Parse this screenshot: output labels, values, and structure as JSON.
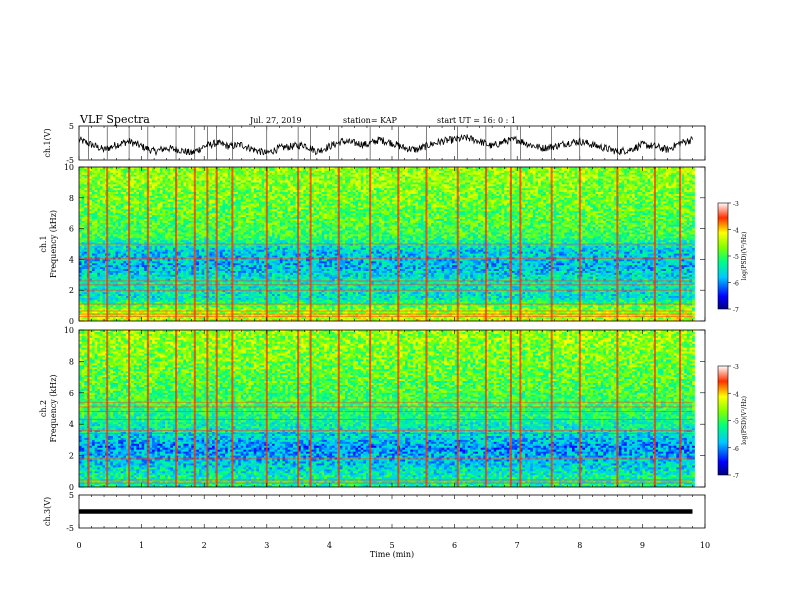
{
  "header": {
    "title": "VLF Spectra",
    "date": "Jul. 27, 2019",
    "station": "station= KAP",
    "start": "start  UT =  16: 0  : 1"
  },
  "chart_data": [
    {
      "type": "line",
      "panel": "ch1-waveform",
      "ylabel": "ch.1(V)",
      "ylim": [
        -5,
        5
      ],
      "ytick_labels": [
        "5",
        "-5"
      ],
      "xlim": [
        0,
        10
      ],
      "x_end": 9.8,
      "series": [
        {
          "x": [
            0.0,
            0.2,
            0.4,
            0.6,
            0.8,
            1.0,
            1.2,
            1.4,
            1.6,
            1.8,
            2.0,
            2.2,
            2.4,
            2.6,
            2.8,
            3.0,
            3.2,
            3.4,
            3.6,
            3.8,
            4.0,
            4.2,
            4.4,
            4.6,
            4.8,
            5.0,
            5.2,
            5.4,
            5.6,
            5.8,
            6.0,
            6.2,
            6.4,
            6.6,
            6.8,
            7.0,
            7.2,
            7.4,
            7.6,
            7.8,
            8.0,
            8.2,
            8.4,
            8.6,
            8.8,
            9.0,
            9.2,
            9.4,
            9.6,
            9.8
          ],
          "values": [
            1.0,
            -0.5,
            -2.0,
            -0.5,
            0.5,
            -1.0,
            -2.5,
            -1.5,
            -2.0,
            -3.0,
            -1.0,
            0.0,
            -1.0,
            -0.5,
            -2.0,
            -3.0,
            -1.5,
            -1.0,
            -0.5,
            -2.5,
            -1.0,
            0.5,
            0.0,
            -0.5,
            1.0,
            0.0,
            -1.5,
            -2.0,
            -0.5,
            0.5,
            1.0,
            1.5,
            0.5,
            -1.0,
            0.5,
            1.0,
            -0.5,
            -1.5,
            -1.0,
            0.0,
            0.5,
            -0.5,
            -1.5,
            -2.5,
            -2.0,
            -0.5,
            -1.0,
            -2.0,
            0.0,
            1.0
          ]
        }
      ]
    },
    {
      "type": "heatmap",
      "panel": "ch1-spectrogram",
      "ylabel_top": "ch.1",
      "ylabel": "Frequency (kHz)",
      "ylim": [
        0,
        10
      ],
      "ytick_labels": [
        "0",
        "2",
        "4",
        "6",
        "8",
        "10"
      ],
      "xlim": [
        0,
        10
      ],
      "colorbar": {
        "label": "log(PSD)(V²/Hz)",
        "range": [
          -7,
          -3
        ],
        "tick_labels": [
          "-3",
          "-4",
          "-5",
          "-6",
          "-7"
        ]
      },
      "mean_psd_by_frequency": {
        "freq_khz": [
          0.5,
          1.5,
          2.5,
          3.5,
          4.5,
          5.5,
          6.5,
          7.5,
          8.5,
          9.5
        ],
        "log_psd": [
          -4.4,
          -5.5,
          -5.4,
          -5.8,
          -5.7,
          -5.0,
          -4.9,
          -4.8,
          -4.7,
          -4.6
        ]
      },
      "vertical_bursts_min": [
        0.15,
        0.45,
        0.8,
        1.1,
        1.55,
        1.85,
        2.05,
        2.2,
        2.45,
        3.0,
        3.5,
        3.7,
        4.15,
        4.65,
        5.1,
        5.55,
        6.05,
        6.5,
        6.9,
        7.05,
        7.55,
        8.0,
        8.6,
        9.2,
        9.6
      ],
      "horizontal_lines_khz": [
        0.3,
        0.45,
        0.65,
        1.1,
        2.0,
        2.35,
        2.6,
        4.05,
        5.0
      ]
    },
    {
      "type": "heatmap",
      "panel": "ch2-spectrogram",
      "ylabel_top": "ch.2",
      "ylabel": "Frequency (kHz)",
      "ylim": [
        0,
        10
      ],
      "ytick_labels": [
        "0",
        "2",
        "4",
        "6",
        "8",
        "10"
      ],
      "xlim": [
        0,
        10
      ],
      "colorbar": {
        "label": "log(PSD)(V²/Hz)",
        "range": [
          -7,
          -3
        ],
        "tick_labels": [
          "-3",
          "-4",
          "-5",
          "-6",
          "-7"
        ]
      },
      "mean_psd_by_frequency": {
        "freq_khz": [
          0.5,
          1.5,
          2.5,
          3.5,
          4.5,
          5.5,
          6.5,
          7.5,
          8.5,
          9.5
        ],
        "log_psd": [
          -5.3,
          -5.7,
          -6.0,
          -5.5,
          -5.2,
          -5.0,
          -4.9,
          -4.8,
          -4.7,
          -4.6
        ]
      },
      "vertical_bursts_min": [
        0.15,
        0.45,
        0.8,
        1.1,
        1.55,
        1.85,
        2.05,
        2.2,
        2.45,
        3.0,
        3.5,
        3.7,
        4.15,
        4.65,
        5.1,
        5.55,
        6.05,
        6.5,
        6.9,
        7.05,
        7.55,
        8.0,
        8.6,
        9.2,
        9.6
      ],
      "horizontal_lines_khz": [
        0.25,
        0.45,
        1.8,
        3.4,
        3.6,
        4.3,
        4.8,
        5.1,
        5.4
      ]
    },
    {
      "type": "line",
      "panel": "ch3-waveform",
      "ylabel": "ch.3(V)",
      "ylim": [
        -5,
        5
      ],
      "ytick_labels": [
        "5",
        "-5"
      ],
      "xlim": [
        0,
        10
      ],
      "x_end": 9.8,
      "series": [
        {
          "x": [
            0,
            9.8
          ],
          "values": [
            0,
            0
          ]
        }
      ],
      "xlabel": "Time (min)",
      "xtick_labels": [
        "0",
        "1",
        "2",
        "3",
        "4",
        "5",
        "6",
        "7",
        "8",
        "9",
        "10"
      ]
    }
  ]
}
